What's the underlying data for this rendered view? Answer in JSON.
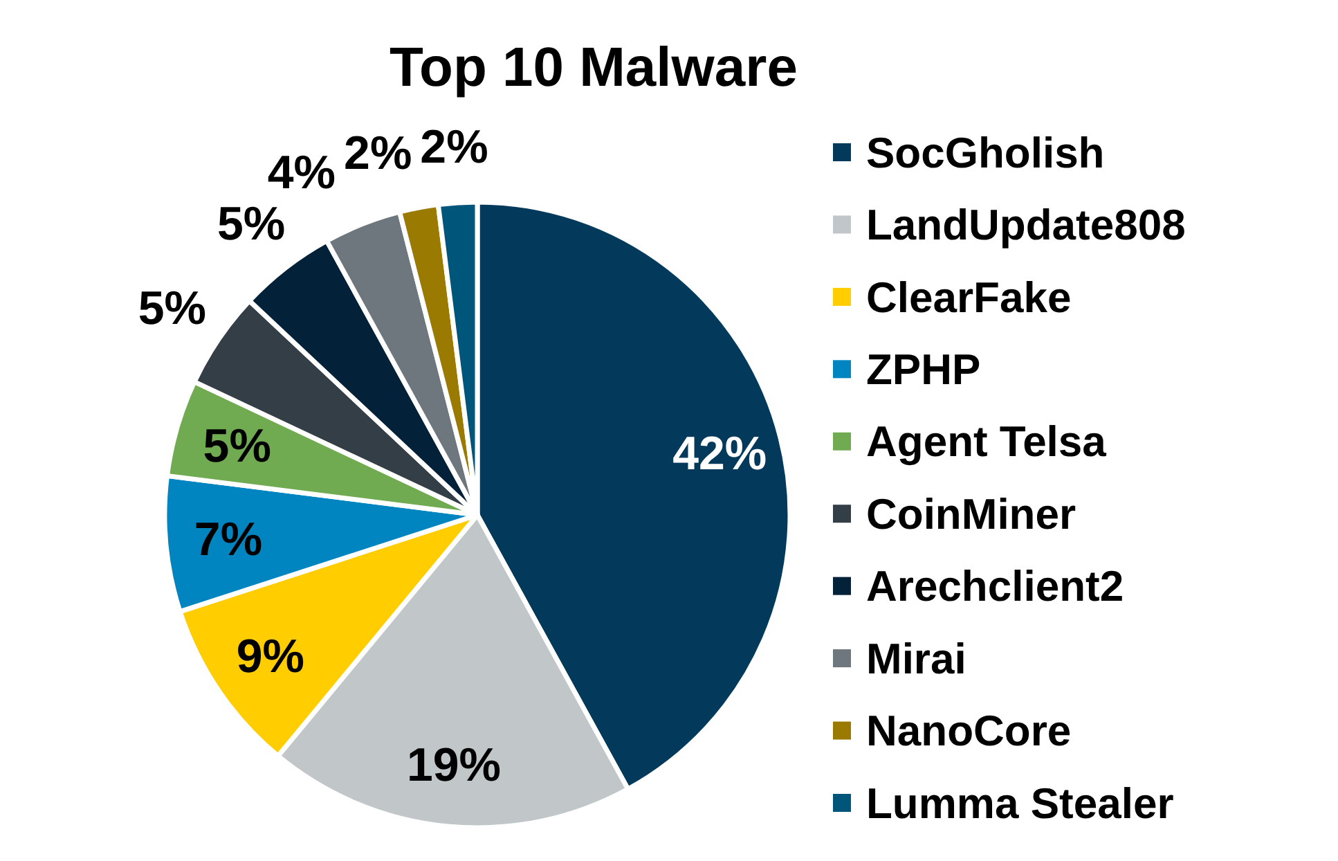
{
  "chart_data": {
    "type": "pie",
    "title": "Top 10 Malware",
    "categories": [
      "SocGholish",
      "LandUpdate808",
      "ClearFake",
      "ZPHP",
      "Agent Telsa",
      "CoinMiner",
      "Arechclient2",
      "Mirai",
      "NanoCore",
      "Lumma Stealer"
    ],
    "values": [
      42,
      19,
      9,
      7,
      5,
      5,
      5,
      4,
      2,
      2
    ],
    "value_labels": [
      "42%",
      "19%",
      "9%",
      "7%",
      "5%",
      "5%",
      "5%",
      "4%",
      "2%",
      "2%"
    ],
    "colors": [
      "#033a5b",
      "#c1c6c8",
      "#ffcd00",
      "#0085c0",
      "#71ab51",
      "#343e47",
      "#03223a",
      "#6e777d",
      "#9a7a00",
      "#00557a"
    ],
    "legend": "right"
  }
}
